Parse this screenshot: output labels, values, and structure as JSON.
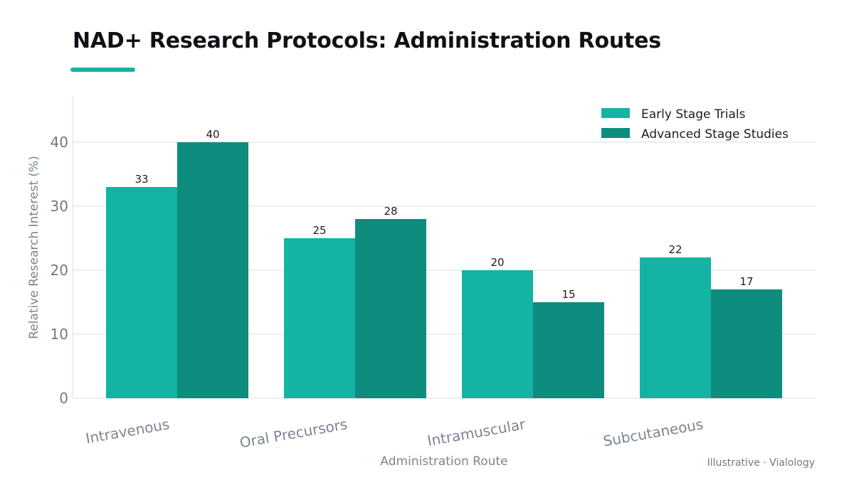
{
  "title": "NAD+ Research Protocols: Administration Routes",
  "credit": "Illustrative · Vialology",
  "colors": {
    "accent": "#14b3a3",
    "early": "#14b3a3",
    "advanced": "#0e8c7e",
    "grid": "#e6e8eb",
    "tick_text": "#6f7a86"
  },
  "chart_data": {
    "type": "bar",
    "categories": [
      "Intravenous",
      "Oral Precursors",
      "Intramuscular",
      "Subcutaneous"
    ],
    "series": [
      {
        "name": "Early Stage Trials",
        "values": [
          33,
          25,
          20,
          22
        ]
      },
      {
        "name": "Advanced Stage Studies",
        "values": [
          40,
          28,
          15,
          17
        ]
      }
    ],
    "xlabel": "Administration Route",
    "ylabel": "Relative Research Interest (%)",
    "ylim": [
      0,
      40
    ],
    "yticks": [
      0,
      10,
      20,
      30,
      40
    ],
    "grid": true,
    "legend": "top-right"
  }
}
